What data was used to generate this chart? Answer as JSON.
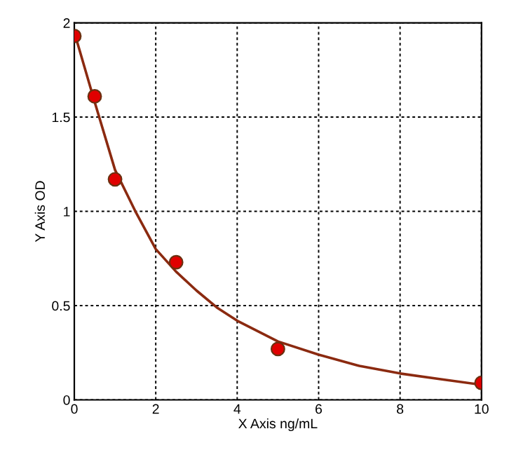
{
  "chart_data": {
    "type": "scatter",
    "xlabel": "X Axis ng/mL",
    "ylabel": "Y Axis OD",
    "xlim": [
      0,
      10
    ],
    "ylim": [
      0,
      2
    ],
    "xticks": [
      0,
      2,
      4,
      6,
      8,
      10
    ],
    "yticks": [
      0,
      0.5,
      1,
      1.5,
      2
    ],
    "grid": true,
    "series": [
      {
        "marker": "circle",
        "color": "#e00000",
        "x": [
          0,
          0.5,
          1,
          2.5,
          5,
          10
        ],
        "values": [
          1.93,
          1.61,
          1.17,
          0.73,
          0.27,
          0.09
        ]
      },
      {
        "type": "line",
        "marker": "none",
        "color": "#8b2a10",
        "line_style": "solid",
        "x": [
          0,
          0.5,
          1,
          1.5,
          2,
          2.5,
          3,
          3.5,
          4,
          5,
          6,
          7,
          8,
          9,
          10
        ],
        "values": [
          1.95,
          1.58,
          1.22,
          1.0,
          0.8,
          0.68,
          0.58,
          0.49,
          0.42,
          0.31,
          0.24,
          0.18,
          0.14,
          0.11,
          0.08
        ]
      }
    ]
  }
}
